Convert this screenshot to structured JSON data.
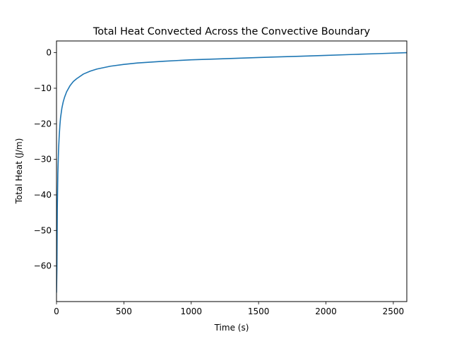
{
  "chart_data": {
    "type": "line",
    "title": "Total Heat Convected Across the Convective Boundary",
    "xlabel": "Time (s)",
    "ylabel": "Total Heat (J/m)",
    "xlim": [
      0,
      2600
    ],
    "ylim": [
      -70,
      3.3
    ],
    "xticks": [
      0,
      500,
      1000,
      1500,
      2000,
      2500
    ],
    "yticks": [
      -60,
      -50,
      -40,
      -30,
      -20,
      -10,
      0
    ],
    "grid": false,
    "series": [
      {
        "color": "#1f77b4",
        "x": [
          0,
          3,
          6,
          10,
          15,
          20,
          25,
          30,
          40,
          50,
          60,
          75,
          100,
          125,
          150,
          200,
          250,
          300,
          400,
          500,
          600,
          800,
          1000,
          1200,
          1500,
          1800,
          2000,
          2200,
          2400,
          2600
        ],
        "y": [
          -67.5,
          -60.5,
          -44,
          -34,
          -27.5,
          -23.5,
          -20.5,
          -18.3,
          -15.6,
          -13.8,
          -12.5,
          -11.0,
          -9.3,
          -8.1,
          -7.3,
          -6.0,
          -5.2,
          -4.6,
          -3.8,
          -3.3,
          -2.9,
          -2.4,
          -2.0,
          -1.75,
          -1.35,
          -1.0,
          -0.75,
          -0.5,
          -0.25,
          0.0
        ]
      }
    ]
  }
}
